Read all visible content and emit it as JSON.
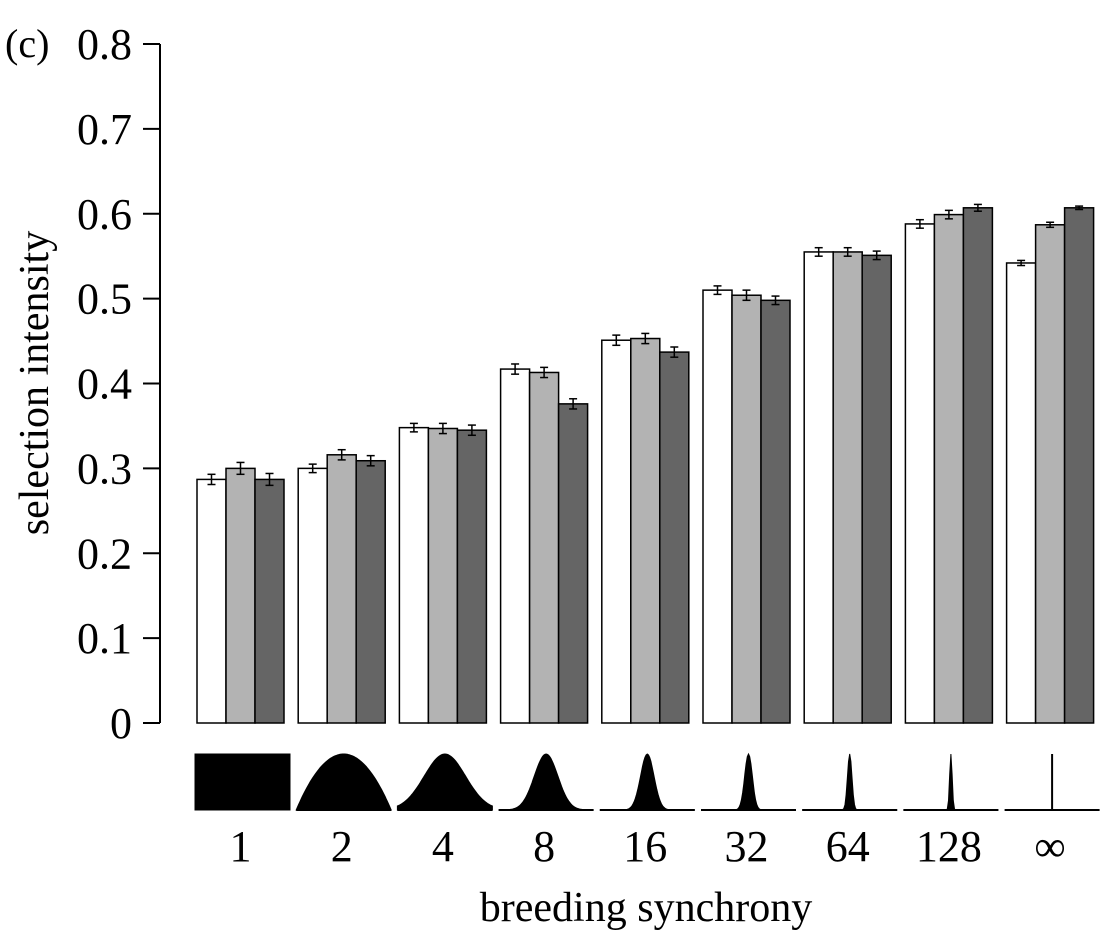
{
  "panel_label": "(c)",
  "chart_data": {
    "type": "bar",
    "title": "",
    "xlabel": "breeding synchrony",
    "ylabel": "selection intensity",
    "ylim": [
      0,
      0.8
    ],
    "yticks": [
      "0",
      "0.1",
      "0.2",
      "0.3",
      "0.4",
      "0.5",
      "0.6",
      "0.7",
      "0.8"
    ],
    "categories": [
      "1",
      "2",
      "4",
      "8",
      "16",
      "32",
      "64",
      "128",
      "∞"
    ],
    "grid": false,
    "legend": "none",
    "series_colors": [
      "#ffffff",
      "#b3b3b3",
      "#656565"
    ],
    "series": [
      {
        "values": [
          0.287,
          0.3,
          0.348,
          0.417,
          0.451,
          0.51,
          0.555,
          0.588,
          0.542
        ],
        "errors": [
          0.006,
          0.005,
          0.005,
          0.006,
          0.006,
          0.005,
          0.005,
          0.005,
          0.003
        ]
      },
      {
        "values": [
          0.3,
          0.316,
          0.347,
          0.413,
          0.453,
          0.504,
          0.555,
          0.599,
          0.587
        ],
        "errors": [
          0.007,
          0.006,
          0.006,
          0.006,
          0.006,
          0.006,
          0.005,
          0.005,
          0.003
        ]
      },
      {
        "values": [
          0.287,
          0.309,
          0.345,
          0.376,
          0.437,
          0.498,
          0.551,
          0.607,
          0.607
        ],
        "errors": [
          0.007,
          0.006,
          0.006,
          0.006,
          0.006,
          0.005,
          0.005,
          0.004,
          0.002
        ]
      }
    ]
  }
}
